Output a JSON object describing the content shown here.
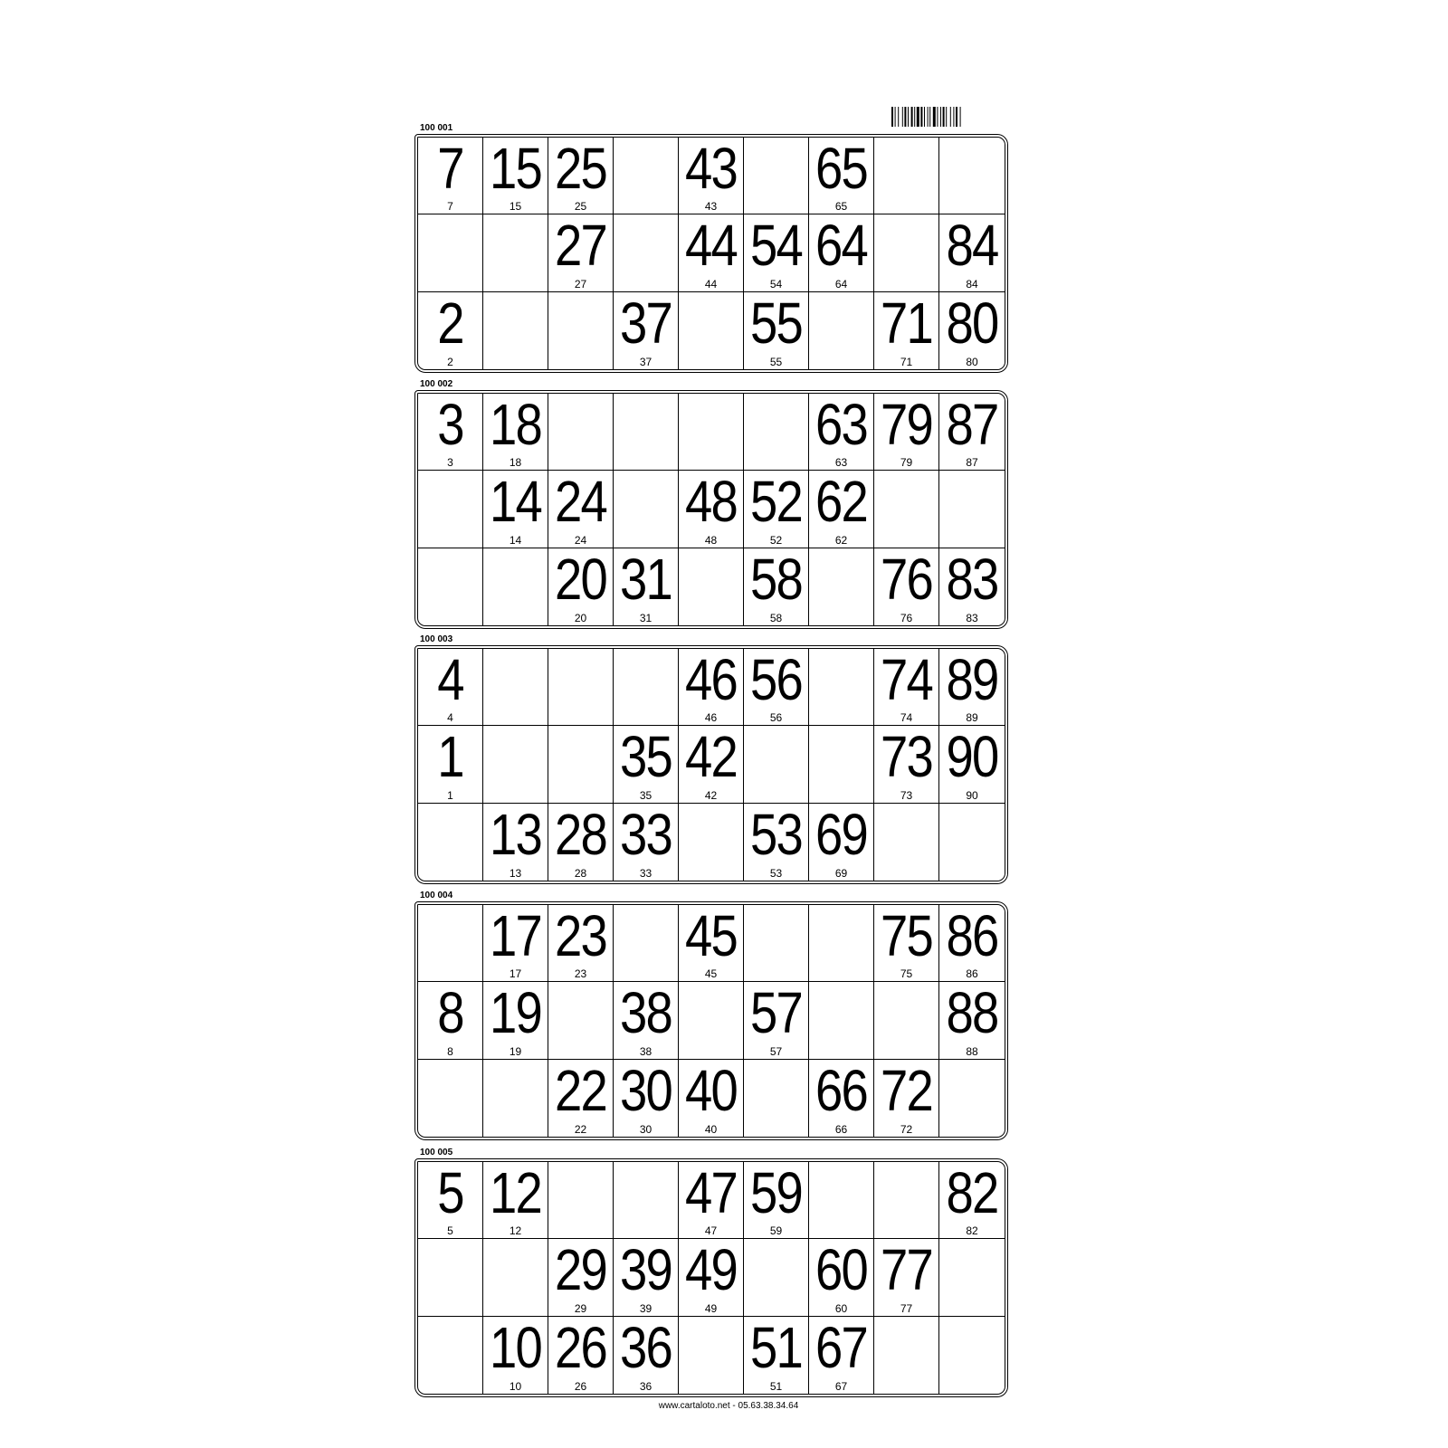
{
  "footer": "www.cartaloto.net - 05.63.38.34.64",
  "cards": [
    {
      "id": "100 001",
      "rows": [
        [
          7,
          15,
          25,
          null,
          43,
          null,
          65,
          null,
          null
        ],
        [
          null,
          null,
          27,
          null,
          44,
          54,
          64,
          null,
          84
        ],
        [
          2,
          null,
          null,
          37,
          null,
          55,
          null,
          71,
          80
        ]
      ]
    },
    {
      "id": "100 002",
      "rows": [
        [
          3,
          18,
          null,
          null,
          null,
          null,
          63,
          79,
          87
        ],
        [
          null,
          14,
          24,
          null,
          48,
          52,
          62,
          null,
          null
        ],
        [
          null,
          null,
          20,
          31,
          null,
          58,
          null,
          76,
          83
        ]
      ]
    },
    {
      "id": "100 003",
      "rows": [
        [
          4,
          null,
          null,
          null,
          46,
          56,
          null,
          74,
          89
        ],
        [
          1,
          null,
          null,
          35,
          42,
          null,
          null,
          73,
          90
        ],
        [
          null,
          13,
          28,
          33,
          null,
          53,
          69,
          null,
          null
        ]
      ]
    },
    {
      "id": "100 004",
      "rows": [
        [
          null,
          17,
          23,
          null,
          45,
          null,
          null,
          75,
          86
        ],
        [
          8,
          19,
          null,
          38,
          null,
          57,
          null,
          null,
          88
        ],
        [
          null,
          null,
          22,
          30,
          40,
          null,
          66,
          72,
          null
        ]
      ]
    },
    {
      "id": "100 005",
      "rows": [
        [
          5,
          12,
          null,
          null,
          47,
          59,
          null,
          null,
          82
        ],
        [
          null,
          null,
          29,
          39,
          49,
          null,
          60,
          77,
          null
        ],
        [
          null,
          10,
          26,
          36,
          null,
          51,
          67,
          null,
          null
        ]
      ]
    }
  ]
}
